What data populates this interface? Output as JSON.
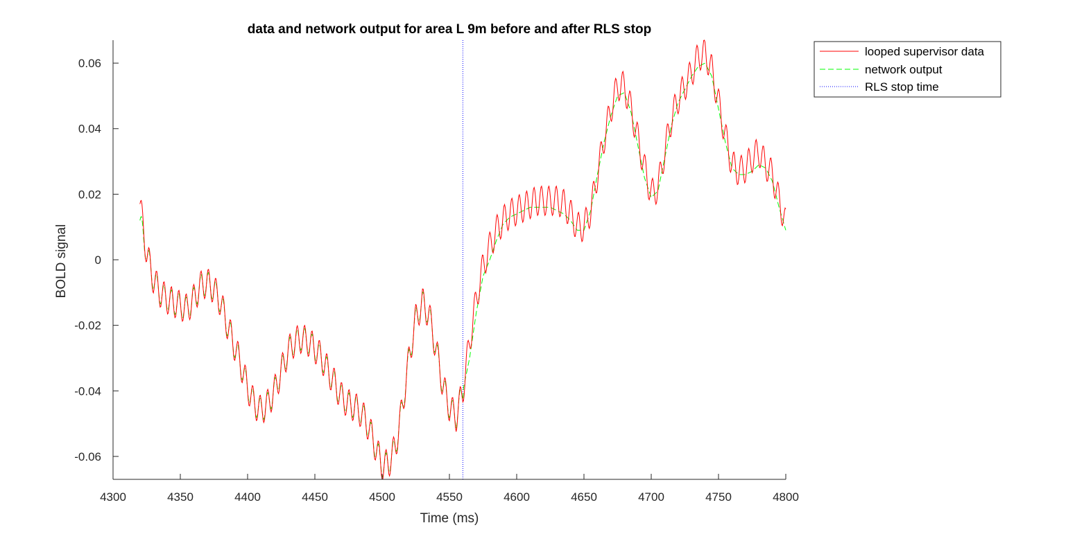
{
  "chart_data": {
    "type": "line",
    "title": "data and network output for area L 9m before and after RLS stop",
    "xlabel": "Time (ms)",
    "ylabel": "BOLD signal",
    "xlim": [
      4300,
      4800
    ],
    "ylim": [
      -0.067,
      0.067
    ],
    "xticks": [
      4300,
      4350,
      4400,
      4450,
      4500,
      4550,
      4600,
      4650,
      4700,
      4750,
      4800
    ],
    "xtick_labels": [
      "4300",
      "4350",
      "4400",
      "4450",
      "4500",
      "4550",
      "4600",
      "4650",
      "4700",
      "4750",
      "4800"
    ],
    "yticks": [
      -0.06,
      -0.04,
      -0.02,
      0,
      0.02,
      0.04,
      0.06
    ],
    "ytick_labels": [
      "-0.06",
      "-0.04",
      "-0.02",
      "0",
      "0.02",
      "0.04",
      "0.06"
    ],
    "grid": false,
    "legend_position": "outside-top-right",
    "rls_stop_time": 4560,
    "series": [
      {
        "name": "looped supervisor data",
        "color": "#ff0000",
        "style": "solid",
        "oscillation": {
          "amplitude": 0.0045,
          "period_ms": 5.5
        },
        "x": [
          4320,
          4325,
          4330,
          4335,
          4340,
          4345,
          4350,
          4355,
          4360,
          4365,
          4370,
          4375,
          4380,
          4385,
          4390,
          4395,
          4400,
          4405,
          4410,
          4415,
          4420,
          4425,
          4430,
          4435,
          4440,
          4445,
          4450,
          4455,
          4460,
          4465,
          4470,
          4475,
          4480,
          4485,
          4490,
          4495,
          4500,
          4505,
          4510,
          4515,
          4520,
          4525,
          4530,
          4535,
          4540,
          4545,
          4550,
          4555,
          4560,
          4565,
          4570,
          4575,
          4580,
          4585,
          4590,
          4595,
          4600,
          4605,
          4610,
          4615,
          4620,
          4625,
          4630,
          4635,
          4640,
          4645,
          4650,
          4655,
          4660,
          4665,
          4670,
          4675,
          4680,
          4685,
          4690,
          4695,
          4700,
          4705,
          4710,
          4715,
          4720,
          4725,
          4730,
          4735,
          4740,
          4745,
          4750,
          4755,
          4760,
          4765,
          4770,
          4775,
          4780,
          4785,
          4790,
          4795,
          4800
        ],
        "y": [
          0.017,
          0.002,
          -0.006,
          -0.01,
          -0.012,
          -0.013,
          -0.014,
          -0.015,
          -0.012,
          -0.008,
          -0.007,
          -0.009,
          -0.013,
          -0.02,
          -0.026,
          -0.032,
          -0.039,
          -0.044,
          -0.046,
          -0.044,
          -0.04,
          -0.034,
          -0.028,
          -0.025,
          -0.024,
          -0.025,
          -0.027,
          -0.03,
          -0.034,
          -0.038,
          -0.042,
          -0.044,
          -0.045,
          -0.047,
          -0.051,
          -0.057,
          -0.063,
          -0.062,
          -0.057,
          -0.045,
          -0.03,
          -0.018,
          -0.013,
          -0.017,
          -0.027,
          -0.038,
          -0.045,
          -0.048,
          -0.04,
          -0.025,
          -0.012,
          -0.002,
          0.004,
          0.009,
          0.012,
          0.014,
          0.015,
          0.016,
          0.017,
          0.018,
          0.018,
          0.018,
          0.018,
          0.017,
          0.014,
          0.01,
          0.01,
          0.015,
          0.026,
          0.037,
          0.046,
          0.053,
          0.053,
          0.046,
          0.037,
          0.028,
          0.02,
          0.022,
          0.033,
          0.043,
          0.049,
          0.053,
          0.057,
          0.062,
          0.063,
          0.058,
          0.048,
          0.038,
          0.029,
          0.027,
          0.028,
          0.031,
          0.033,
          0.029,
          0.026,
          0.018,
          0.011
        ]
      },
      {
        "name": "network output",
        "color": "#00ff00",
        "style": "dashed",
        "oscillation": {
          "amplitude": 0.0035,
          "period_ms": 5.5,
          "until_x": 4560
        },
        "x": [
          4320,
          4325,
          4330,
          4335,
          4340,
          4345,
          4350,
          4355,
          4360,
          4365,
          4370,
          4375,
          4380,
          4385,
          4390,
          4395,
          4400,
          4405,
          4410,
          4415,
          4420,
          4425,
          4430,
          4435,
          4440,
          4445,
          4450,
          4455,
          4460,
          4465,
          4470,
          4475,
          4480,
          4485,
          4490,
          4495,
          4500,
          4505,
          4510,
          4515,
          4520,
          4525,
          4530,
          4535,
          4540,
          4545,
          4550,
          4555,
          4560,
          4565,
          4570,
          4575,
          4580,
          4585,
          4590,
          4595,
          4600,
          4605,
          4610,
          4615,
          4620,
          4625,
          4630,
          4635,
          4640,
          4645,
          4650,
          4655,
          4660,
          4665,
          4670,
          4675,
          4680,
          4685,
          4690,
          4695,
          4700,
          4705,
          4710,
          4715,
          4720,
          4725,
          4730,
          4735,
          4740,
          4745,
          4750,
          4755,
          4760,
          4765,
          4770,
          4775,
          4780,
          4785,
          4790,
          4795,
          4800
        ],
        "y": [
          0.012,
          0.002,
          -0.006,
          -0.01,
          -0.012,
          -0.013,
          -0.014,
          -0.015,
          -0.012,
          -0.008,
          -0.007,
          -0.009,
          -0.013,
          -0.02,
          -0.026,
          -0.032,
          -0.039,
          -0.044,
          -0.046,
          -0.044,
          -0.04,
          -0.034,
          -0.028,
          -0.025,
          -0.024,
          -0.025,
          -0.027,
          -0.03,
          -0.034,
          -0.038,
          -0.042,
          -0.044,
          -0.045,
          -0.047,
          -0.051,
          -0.057,
          -0.063,
          -0.062,
          -0.057,
          -0.045,
          -0.03,
          -0.018,
          -0.013,
          -0.017,
          -0.027,
          -0.038,
          -0.045,
          -0.048,
          -0.04,
          -0.03,
          -0.016,
          -0.005,
          0.0,
          0.006,
          0.011,
          0.013,
          0.014,
          0.015,
          0.016,
          0.016,
          0.016,
          0.016,
          0.015,
          0.014,
          0.012,
          0.009,
          0.009,
          0.015,
          0.026,
          0.036,
          0.044,
          0.05,
          0.051,
          0.045,
          0.035,
          0.025,
          0.019,
          0.021,
          0.031,
          0.041,
          0.048,
          0.052,
          0.056,
          0.059,
          0.06,
          0.056,
          0.046,
          0.036,
          0.028,
          0.026,
          0.026,
          0.027,
          0.029,
          0.028,
          0.024,
          0.016,
          0.009
        ]
      },
      {
        "name": "RLS stop time",
        "color": "#0000ff",
        "style": "dotted",
        "vertical_line_x": 4560
      }
    ]
  }
}
